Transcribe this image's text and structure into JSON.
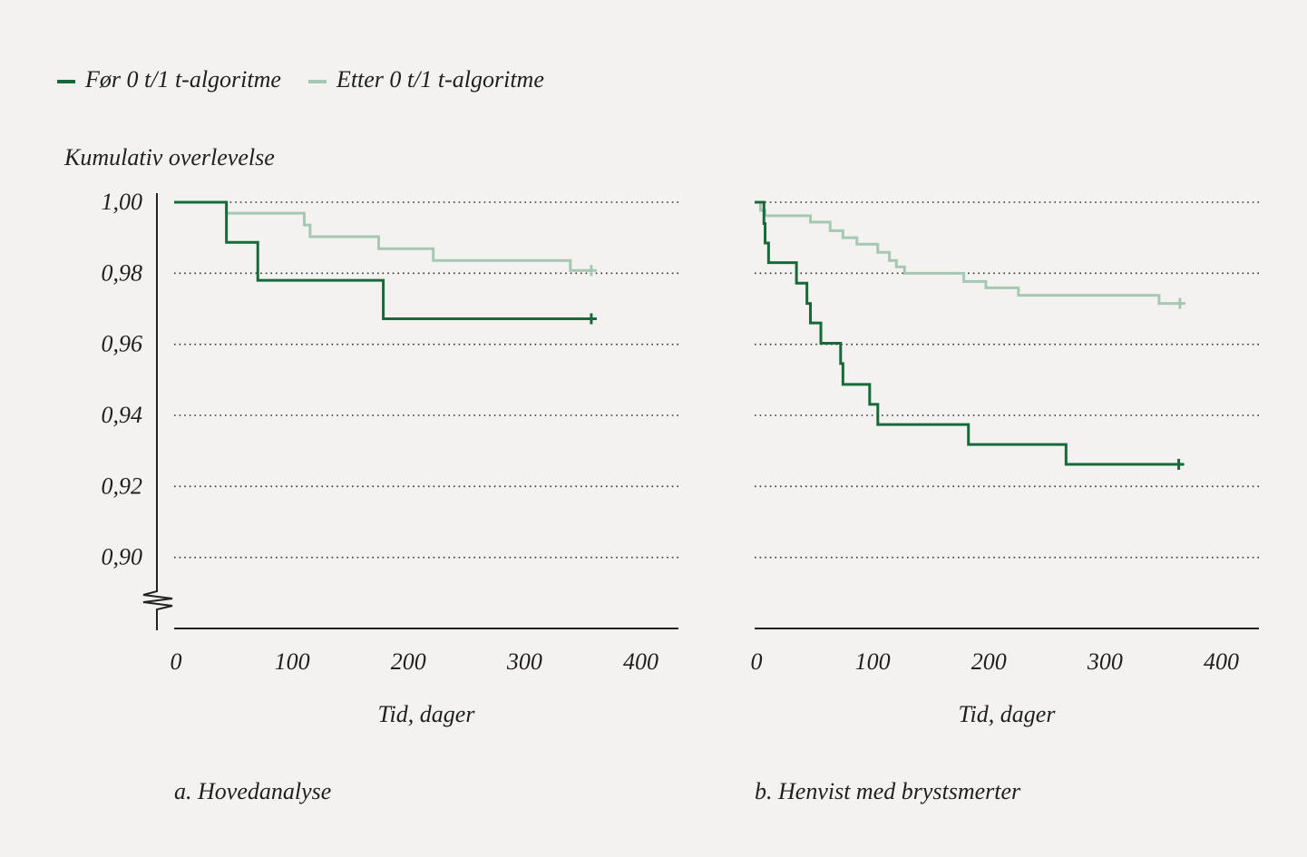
{
  "chart_data": [
    {
      "type": "step",
      "caption": "a. Hovedanalyse",
      "y_label": "Kumulativ overlevelse",
      "x_label": "Tid, dager",
      "xlim": [
        0,
        434
      ],
      "ylim": [
        0.88,
        1.0
      ],
      "xticks": [
        0,
        100,
        200,
        300,
        400
      ],
      "yticks": [
        {
          "value": 1.0,
          "label": "1,00"
        },
        {
          "value": 0.98,
          "label": "0,98"
        },
        {
          "value": 0.96,
          "label": "0,96"
        },
        {
          "value": 0.94,
          "label": "0,94"
        },
        {
          "value": 0.92,
          "label": "0,92"
        },
        {
          "value": 0.9,
          "label": "0,90"
        }
      ],
      "grid": true,
      "series": [
        {
          "name": "Før 0 t/1 t-algoritme",
          "color": "#17693a",
          "x": [
            0,
            45,
            72,
            180,
            359
          ],
          "values": [
            1.0,
            0.9887,
            0.978,
            0.9672,
            0.9672
          ]
        },
        {
          "name": "Etter 0 t/1 t-algoritme",
          "color": "#a6c8b2",
          "x": [
            0,
            45,
            112,
            117,
            176,
            223,
            341,
            359
          ],
          "values": [
            1.0,
            0.9969,
            0.9936,
            0.9903,
            0.9869,
            0.9836,
            0.9808,
            0.9808
          ]
        }
      ]
    },
    {
      "type": "step",
      "caption": "b. Henvist med brystsmerter",
      "x_label": "Tid, dager",
      "xlim": [
        0,
        434
      ],
      "ylim": [
        0.88,
        1.0
      ],
      "xticks": [
        0,
        100,
        200,
        300,
        400
      ],
      "yticks": [
        1.0,
        0.98,
        0.96,
        0.94,
        0.92,
        0.9
      ],
      "grid": true,
      "series": [
        {
          "color": "#17693a",
          "x": [
            0,
            8,
            9,
            12,
            36,
            45,
            48,
            57,
            74,
            76,
            99,
            106,
            184,
            268,
            365
          ],
          "values": [
            1.0,
            0.994,
            0.9885,
            0.983,
            0.9772,
            0.9715,
            0.966,
            0.9603,
            0.9546,
            0.9487,
            0.9431,
            0.9374,
            0.9318,
            0.9262,
            0.9262
          ]
        },
        {
          "color": "#a6c8b2",
          "x": [
            0,
            5,
            9,
            48,
            65,
            76,
            88,
            106,
            116,
            122,
            129,
            180,
            199,
            227,
            348,
            366
          ],
          "values": [
            1.0,
            0.9977,
            0.9962,
            0.9944,
            0.992,
            0.99,
            0.9882,
            0.9859,
            0.9836,
            0.9818,
            0.98,
            0.9777,
            0.9759,
            0.9738,
            0.9715,
            0.9715
          ]
        }
      ]
    }
  ]
}
